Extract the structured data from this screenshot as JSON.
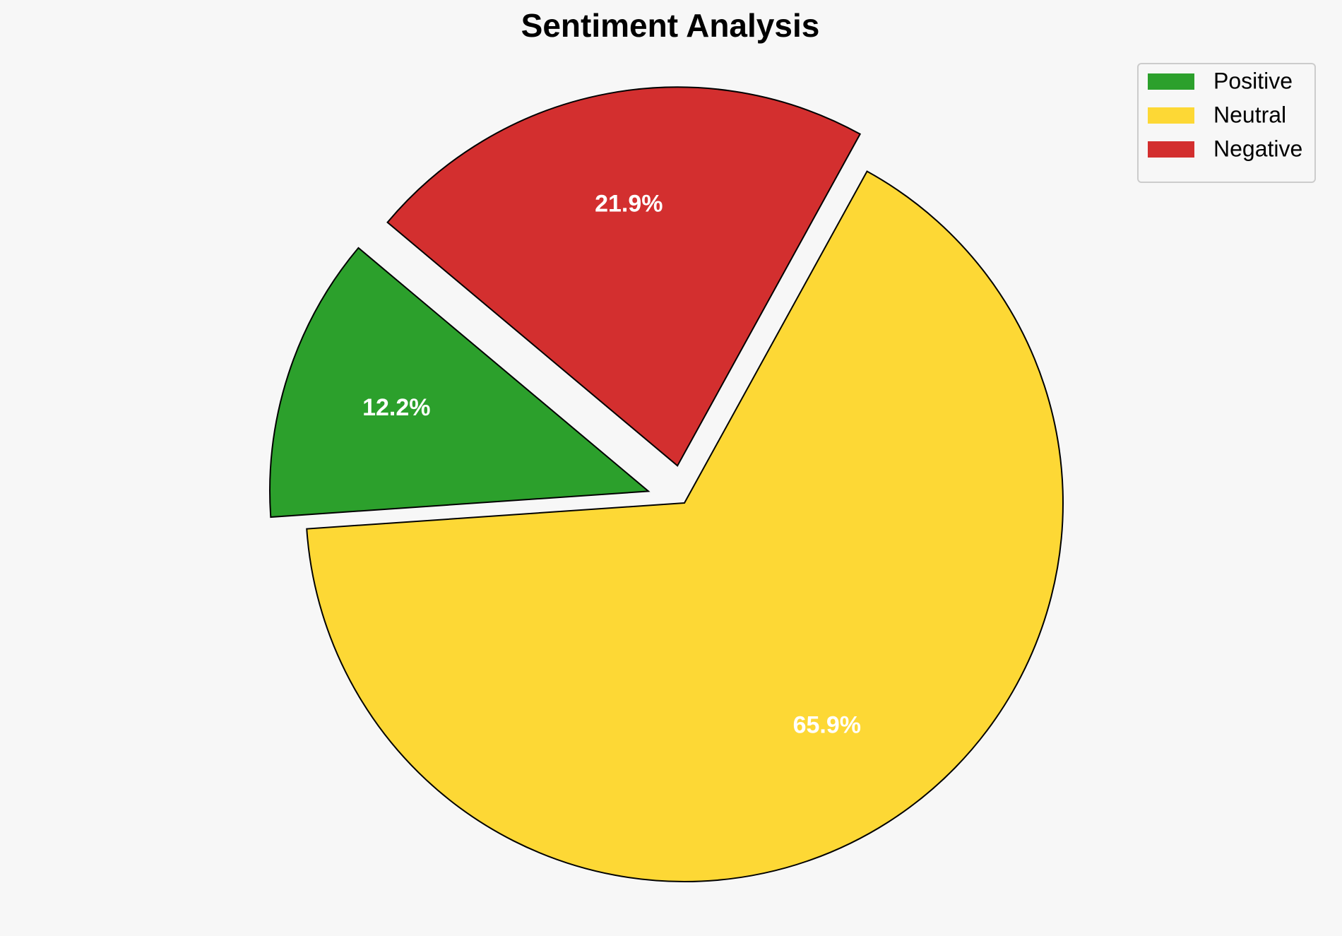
{
  "chart_data": {
    "type": "pie",
    "title": "Sentiment Analysis",
    "categories": [
      "Positive",
      "Neutral",
      "Negative"
    ],
    "values": [
      12.2,
      65.9,
      21.9
    ],
    "value_labels": [
      "12.2%",
      "65.9%",
      "21.9%"
    ],
    "colors": [
      "#2ca02c",
      "#fdd835",
      "#d32f2f"
    ],
    "explode": [
      0.1,
      0,
      0.1
    ],
    "startangle": 140,
    "legend": "upper right"
  }
}
